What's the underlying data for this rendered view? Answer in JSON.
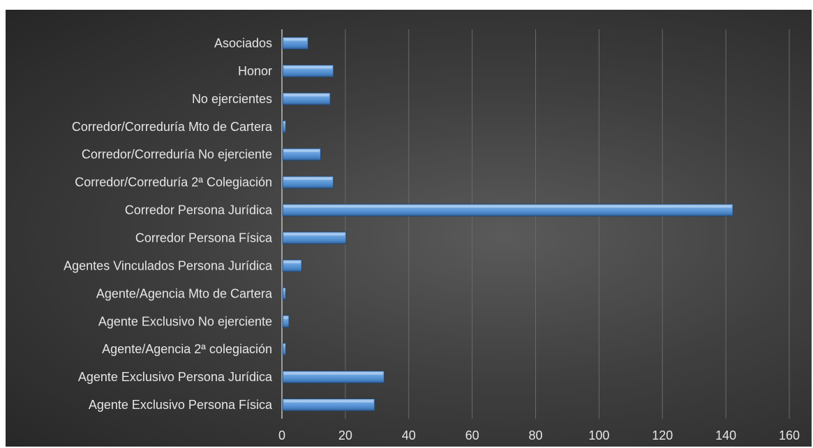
{
  "chart_data": {
    "type": "bar",
    "orientation": "horizontal",
    "title": "",
    "xlabel": "",
    "ylabel": "",
    "xlim": [
      0,
      160
    ],
    "xticks": [
      0,
      20,
      40,
      60,
      80,
      100,
      120,
      140,
      160
    ],
    "grid": true,
    "legend": "none",
    "bar_color": "#5b9bd5",
    "categories": [
      "Agente Exclusivo Persona Física",
      "Agente Exclusivo Persona Jurídica",
      "Agente/Agencia 2ª colegiación",
      "Agente Exclusivo No ejerciente",
      "Agente/Agencia Mto de Cartera",
      "Agentes Vinculados Persona Jurídica",
      "Corredor Persona Física",
      "Corredor Persona Jurídica",
      "Corredor/Correduría 2ª Colegiación",
      "Corredor/Correduría No ejerciente",
      "Corredor/Correduría Mto de Cartera",
      "No ejercientes",
      "Honor",
      "Asociados"
    ],
    "values": [
      29,
      32,
      1,
      2,
      1,
      6,
      20,
      142,
      16,
      12,
      1,
      15,
      16,
      8
    ]
  }
}
